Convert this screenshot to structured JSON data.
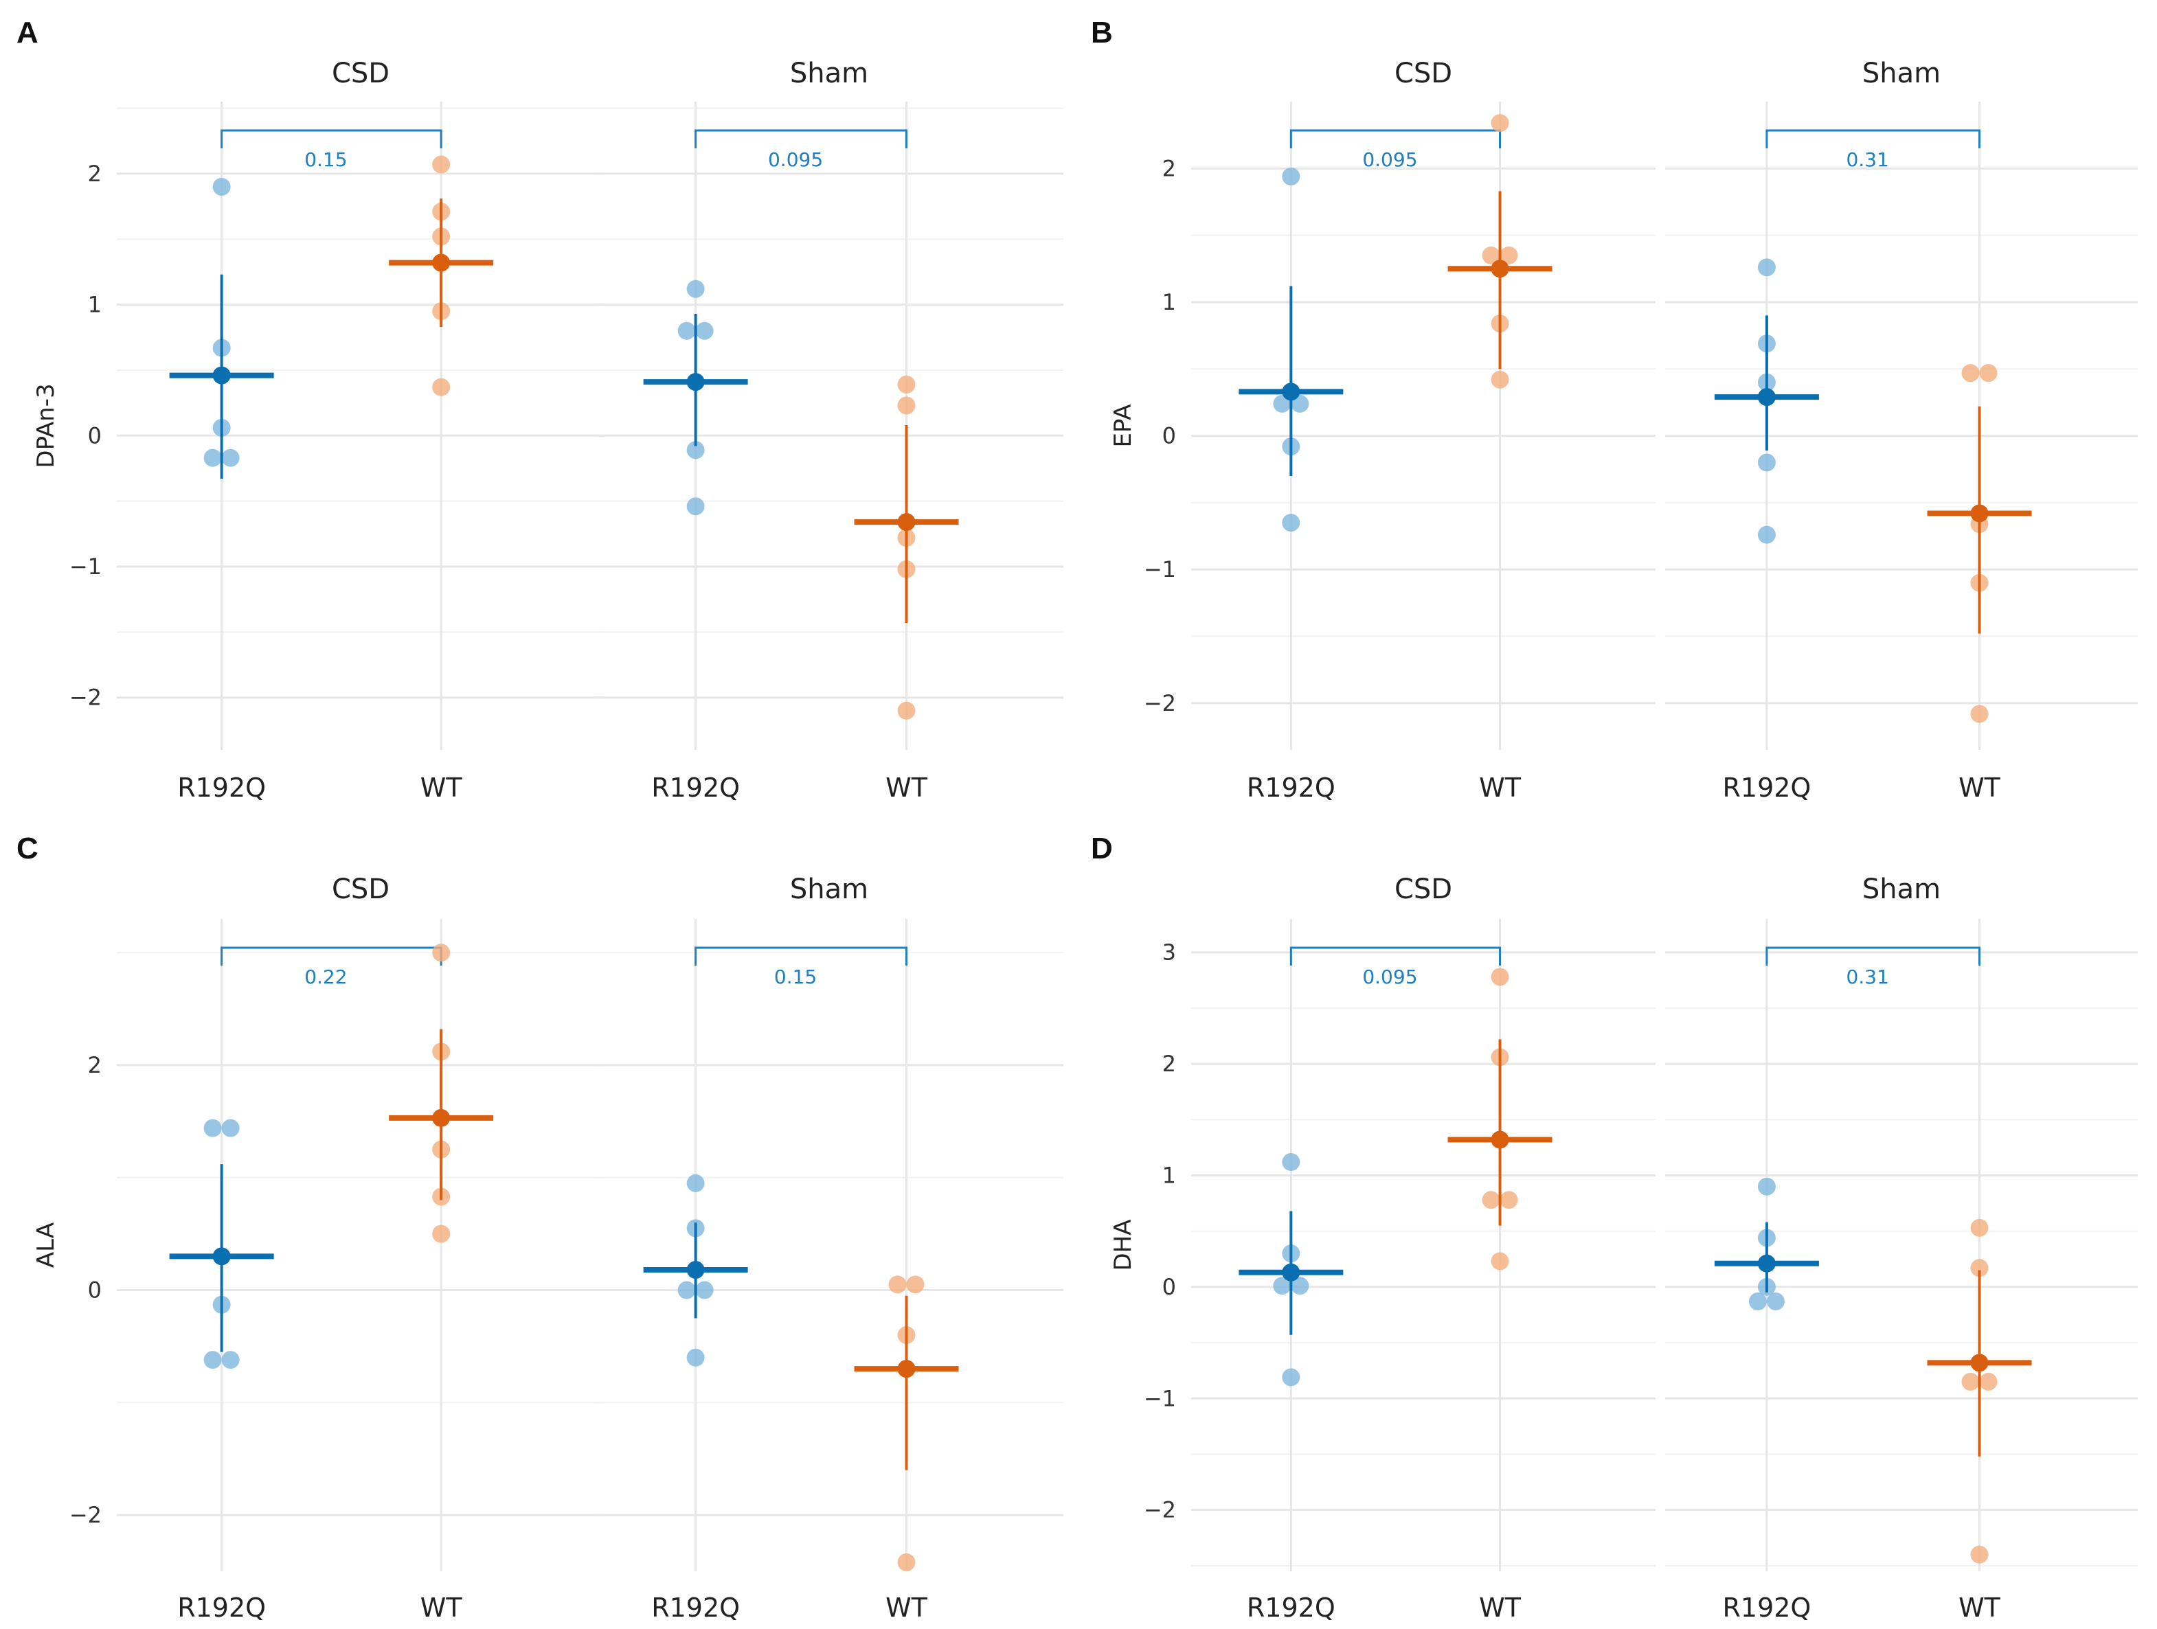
{
  "colors": {
    "R192Q_point": "#7fb7de",
    "R192Q_line": "#0a6fb0",
    "WT_point": "#f2ae7c",
    "WT_line": "#d95f0e",
    "bracket": "#1f7fc0"
  },
  "chart_data": [
    {
      "type": "scatter",
      "panel": "A",
      "ylabel": "DPAn-3",
      "ylim": [
        -2.4,
        2.55
      ],
      "yticks": [
        -2,
        -1,
        0,
        1,
        2
      ],
      "facets": [
        {
          "title": "CSD",
          "categories": [
            "R192Q",
            "WT"
          ],
          "comparison_p": "0.15",
          "groups": [
            {
              "genotype": "R192Q",
              "points": [
                1.9,
                0.67,
                0.06,
                -0.17,
                -0.17
              ],
              "mean": 0.46,
              "lower": -0.33,
              "upper": 1.23
            },
            {
              "genotype": "WT",
              "points": [
                2.07,
                1.71,
                1.52,
                0.95,
                0.37
              ],
              "mean": 1.32,
              "lower": 0.83,
              "upper": 1.81
            }
          ]
        },
        {
          "title": "Sham",
          "categories": [
            "R192Q",
            "WT"
          ],
          "comparison_p": "0.095",
          "groups": [
            {
              "genotype": "R192Q",
              "points": [
                1.12,
                0.8,
                0.8,
                -0.11,
                -0.54
              ],
              "mean": 0.41,
              "lower": -0.08,
              "upper": 0.93
            },
            {
              "genotype": "WT",
              "points": [
                0.39,
                0.23,
                -0.78,
                -1.02,
                -2.1
              ],
              "mean": -0.66,
              "lower": -1.43,
              "upper": 0.08
            }
          ]
        }
      ]
    },
    {
      "type": "scatter",
      "panel": "B",
      "ylabel": "EPA",
      "ylim": [
        -2.35,
        2.5
      ],
      "yticks": [
        -2,
        -1,
        0,
        1,
        2
      ],
      "facets": [
        {
          "title": "CSD",
          "categories": [
            "R192Q",
            "WT"
          ],
          "comparison_p": "0.095",
          "groups": [
            {
              "genotype": "R192Q",
              "points": [
                1.94,
                0.24,
                0.24,
                -0.08,
                -0.65
              ],
              "mean": 0.33,
              "lower": -0.3,
              "upper": 1.12
            },
            {
              "genotype": "WT",
              "points": [
                2.34,
                1.35,
                1.35,
                0.84,
                0.42
              ],
              "mean": 1.25,
              "lower": 0.5,
              "upper": 1.83
            }
          ]
        },
        {
          "title": "Sham",
          "categories": [
            "R192Q",
            "WT"
          ],
          "comparison_p": "0.31",
          "groups": [
            {
              "genotype": "R192Q",
              "points": [
                1.26,
                0.69,
                0.4,
                -0.2,
                -0.74
              ],
              "mean": 0.29,
              "lower": -0.11,
              "upper": 0.9
            },
            {
              "genotype": "WT",
              "points": [
                0.47,
                0.47,
                -0.66,
                -1.1,
                -2.08
              ],
              "mean": -0.58,
              "lower": -1.48,
              "upper": 0.22
            }
          ]
        }
      ]
    },
    {
      "type": "scatter",
      "panel": "C",
      "ylabel": "ALA",
      "ylim": [
        -2.5,
        3.3
      ],
      "yticks": [
        -2,
        0,
        2
      ],
      "facets": [
        {
          "title": "CSD",
          "categories": [
            "R192Q",
            "WT"
          ],
          "comparison_p": "0.22",
          "groups": [
            {
              "genotype": "R192Q",
              "points": [
                1.44,
                1.44,
                -0.13,
                -0.62,
                -0.62
              ],
              "mean": 0.3,
              "lower": -0.55,
              "upper": 1.12
            },
            {
              "genotype": "WT",
              "points": [
                3.0,
                2.12,
                1.25,
                0.83,
                0.5
              ],
              "mean": 1.53,
              "lower": 0.8,
              "upper": 2.32
            }
          ]
        },
        {
          "title": "Sham",
          "categories": [
            "R192Q",
            "WT"
          ],
          "comparison_p": "0.15",
          "groups": [
            {
              "genotype": "R192Q",
              "points": [
                0.95,
                0.55,
                0.0,
                0.0,
                -0.6
              ],
              "mean": 0.18,
              "lower": -0.25,
              "upper": 0.6
            },
            {
              "genotype": "WT",
              "points": [
                0.05,
                0.05,
                -0.4,
                -0.7,
                -2.42
              ],
              "mean": -0.7,
              "lower": -1.6,
              "upper": -0.05
            }
          ]
        }
      ]
    },
    {
      "type": "scatter",
      "panel": "D",
      "ylabel": "DHA",
      "ylim": [
        -2.55,
        3.3
      ],
      "yticks": [
        -2,
        -1,
        0,
        1,
        2,
        3
      ],
      "facets": [
        {
          "title": "CSD",
          "categories": [
            "R192Q",
            "WT"
          ],
          "comparison_p": "0.095",
          "groups": [
            {
              "genotype": "R192Q",
              "points": [
                1.12,
                0.3,
                0.01,
                0.01,
                -0.81
              ],
              "mean": 0.13,
              "lower": -0.43,
              "upper": 0.68
            },
            {
              "genotype": "WT",
              "points": [
                2.78,
                2.06,
                0.78,
                0.78,
                0.23
              ],
              "mean": 1.32,
              "lower": 0.55,
              "upper": 2.22
            }
          ]
        },
        {
          "title": "Sham",
          "categories": [
            "R192Q",
            "WT"
          ],
          "comparison_p": "0.31",
          "groups": [
            {
              "genotype": "R192Q",
              "points": [
                0.9,
                0.44,
                0.0,
                -0.13,
                -0.13
              ],
              "mean": 0.21,
              "lower": -0.05,
              "upper": 0.58
            },
            {
              "genotype": "WT",
              "points": [
                0.53,
                0.17,
                -0.85,
                -0.85,
                -2.4
              ],
              "mean": -0.68,
              "lower": -1.52,
              "upper": 0.15
            }
          ]
        }
      ]
    }
  ]
}
